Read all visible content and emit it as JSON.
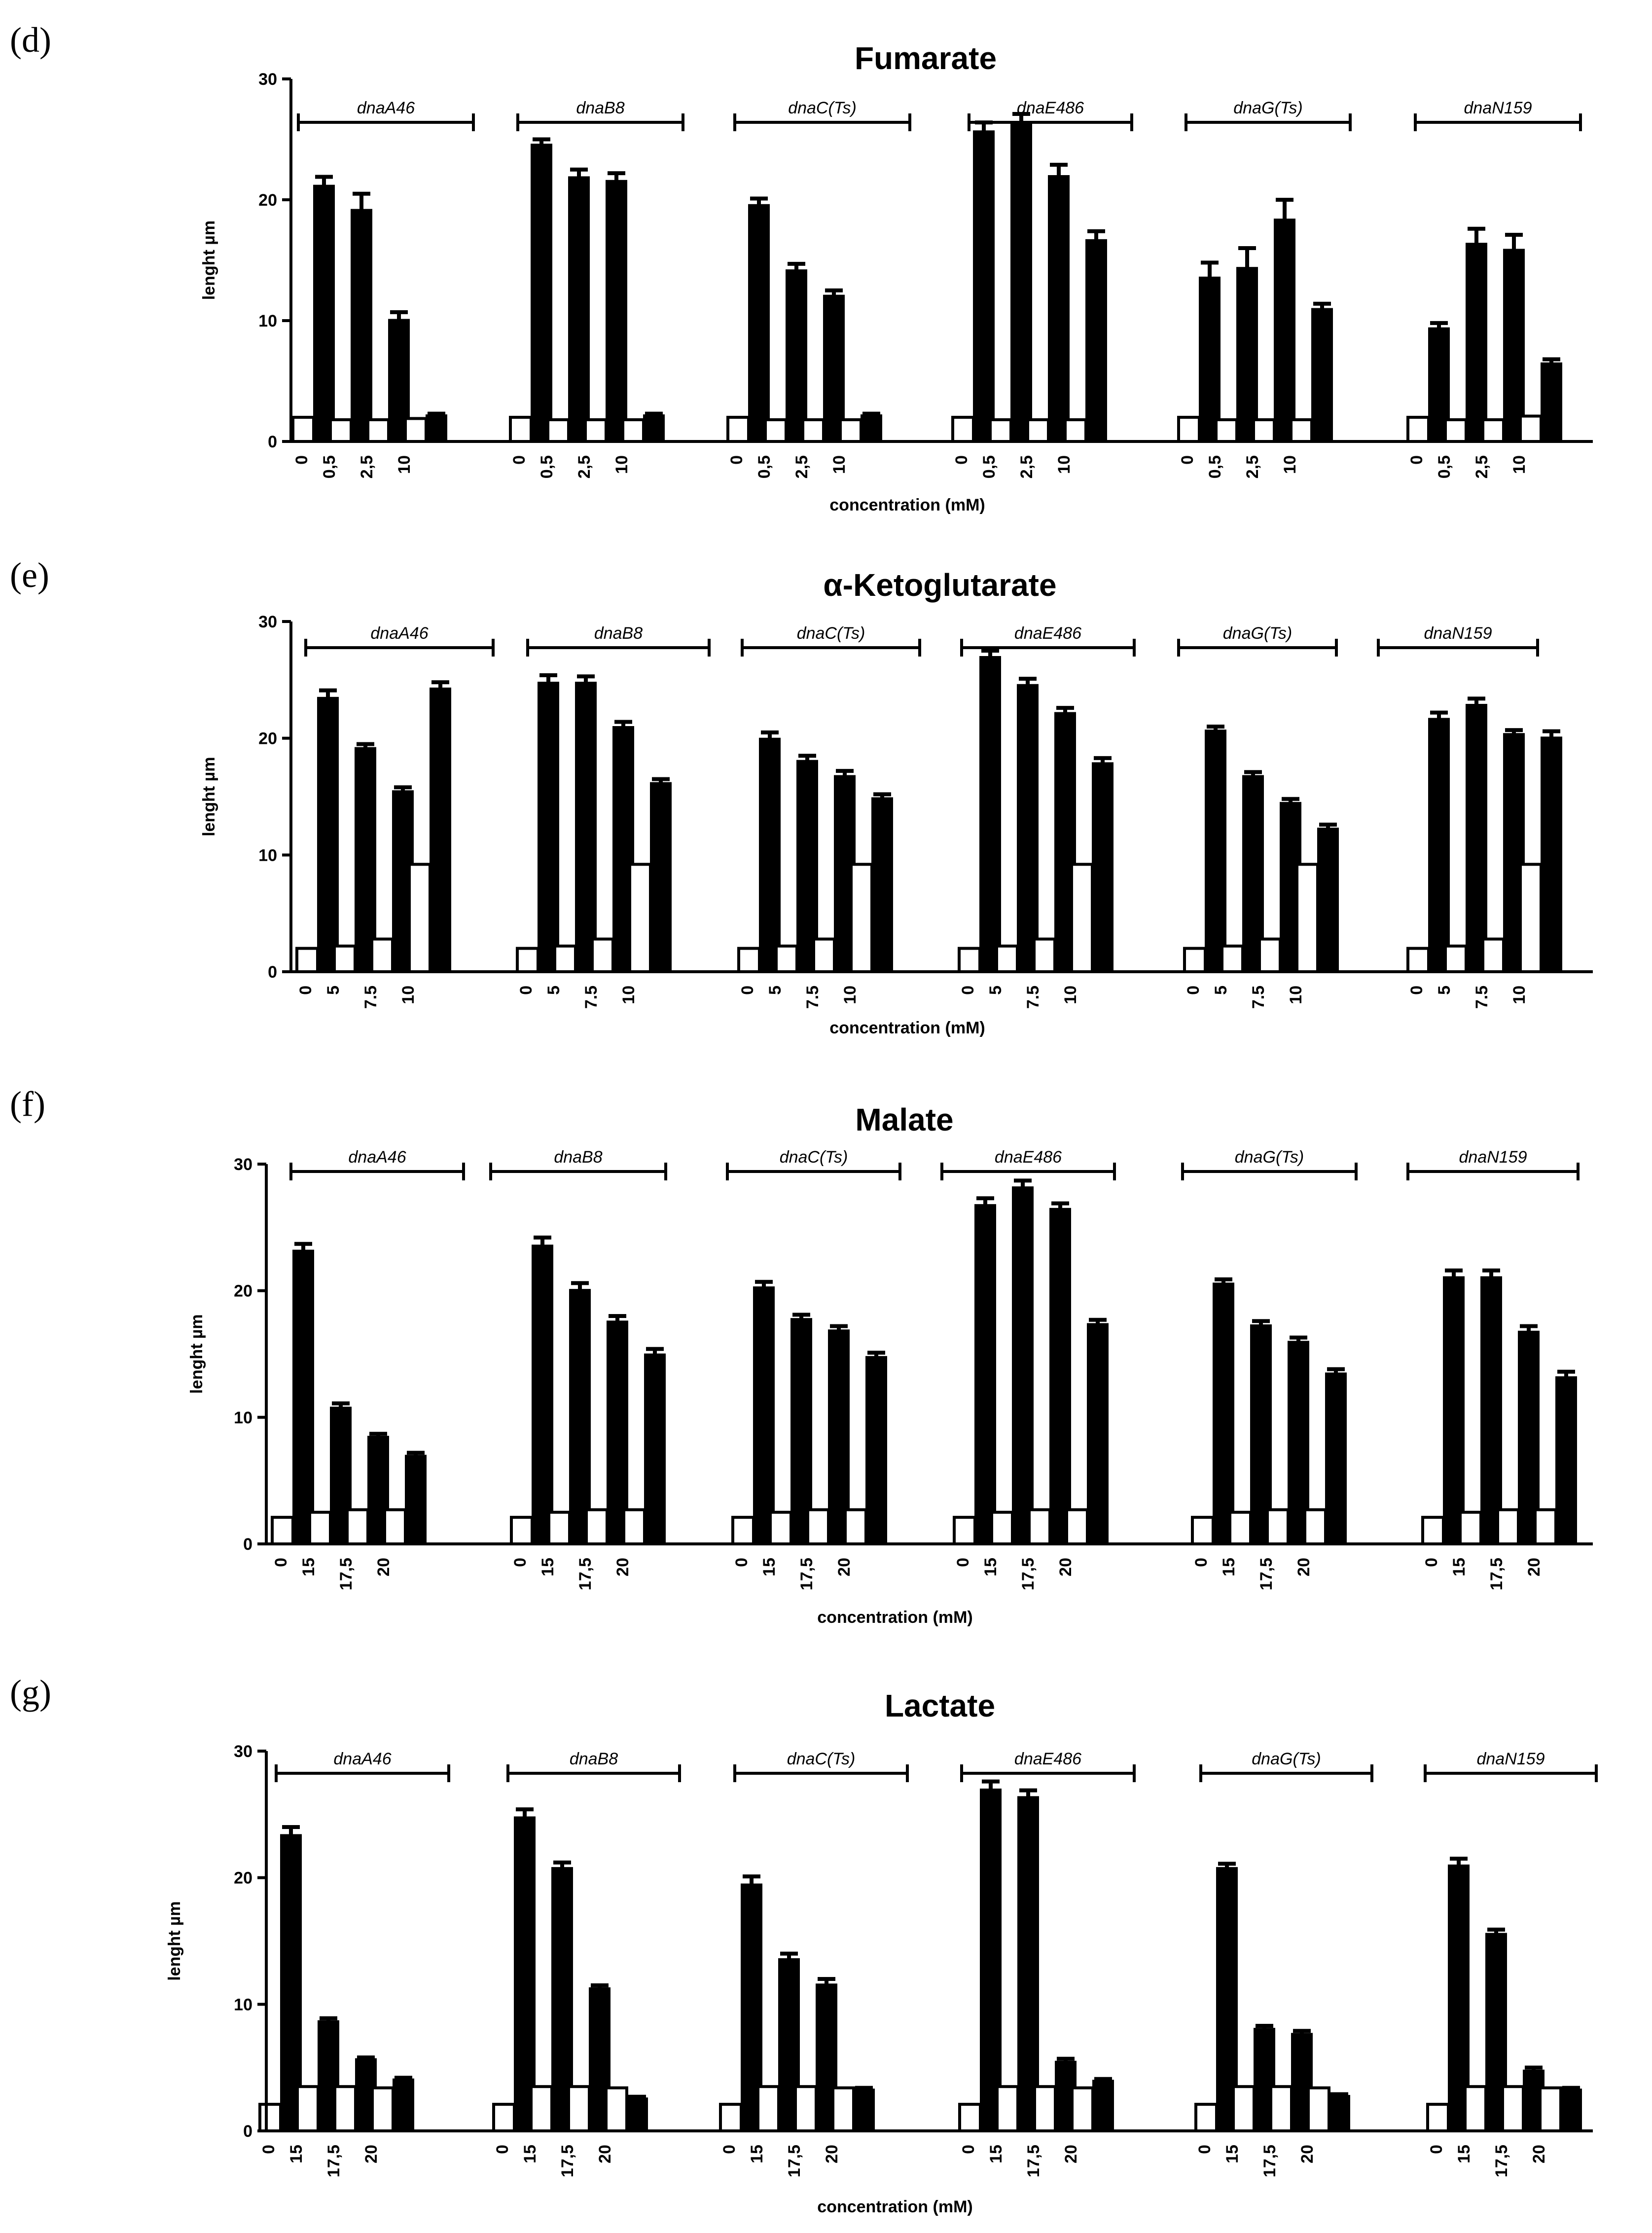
{
  "figure": {
    "panels": [
      {
        "letter": "(d)",
        "title": "Fumarate"
      },
      {
        "letter": "(e)",
        "title": "α-Ketoglutarate"
      },
      {
        "letter": "(f)",
        "title": "Malate"
      },
      {
        "letter": "(g)",
        "title": "Lactate"
      }
    ]
  },
  "colors": {
    "filled": "#000000",
    "open": "#ffffff",
    "axis": "#000000"
  },
  "chart_data": [
    {
      "type": "bar",
      "title": "Fumarate",
      "panel": "(d)",
      "xlabel": "concentration (mM)",
      "ylabel": "lenght µm",
      "ylim": [
        0,
        30
      ],
      "yticks": [
        0,
        10,
        20,
        30
      ],
      "tick_labels": [
        "0",
        "0,5",
        "2,5",
        "10"
      ],
      "groups": [
        "dnaA46",
        "dnaB8",
        "dnaC(Ts)",
        "dnaE486",
        "dnaG(Ts)",
        "dnaN159"
      ],
      "series": [
        {
          "name": "open (control)",
          "values": [
            [
              2.0,
              1.8,
              1.8,
              1.9
            ],
            [
              2.0,
              1.8,
              1.8,
              1.8
            ],
            [
              2.0,
              1.8,
              1.8,
              1.8
            ],
            [
              2.0,
              1.8,
              1.8,
              1.8
            ],
            [
              2.0,
              1.8,
              1.8,
              1.8
            ],
            [
              2.0,
              1.8,
              1.8,
              2.1
            ]
          ]
        },
        {
          "name": "filled (treated)",
          "values": [
            [
              21.2,
              19.2,
              10.1,
              2.2
            ],
            [
              24.6,
              21.9,
              21.6,
              2.2
            ],
            [
              19.6,
              14.2,
              12.1,
              2.2
            ],
            [
              25.7,
              26.3,
              22.0,
              16.7
            ],
            [
              13.6,
              14.4,
              18.4,
              11.0
            ],
            [
              9.4,
              16.4,
              15.9,
              6.5
            ]
          ]
        },
        {
          "name": "filled error",
          "values": [
            [
              0.7,
              1.3,
              0.6,
              0.1
            ],
            [
              0.4,
              0.6,
              0.6,
              0.1
            ],
            [
              0.5,
              0.5,
              0.4,
              0.1
            ],
            [
              0.7,
              0.8,
              0.9,
              0.7
            ],
            [
              1.2,
              1.6,
              1.6,
              0.4
            ],
            [
              0.4,
              1.2,
              1.2,
              0.3
            ]
          ]
        }
      ]
    },
    {
      "type": "bar",
      "title": "α-Ketoglutarate",
      "panel": "(e)",
      "xlabel": "concentration (mM)",
      "ylabel": "lenght µm",
      "ylim": [
        0,
        30
      ],
      "yticks": [
        0,
        10,
        20,
        30
      ],
      "tick_labels": [
        "0",
        "5",
        "7.5",
        "10"
      ],
      "groups": [
        "dnaA46",
        "dnaB8",
        "dnaC(Ts)",
        "dnaE486",
        "dnaG(Ts)",
        "dnaN159"
      ],
      "series": [
        {
          "name": "open (control)",
          "values": [
            [
              2.0,
              2.2,
              2.8,
              9.2
            ],
            [
              2.0,
              2.2,
              2.8,
              9.2
            ],
            [
              2.0,
              2.2,
              2.8,
              9.2
            ],
            [
              2.0,
              2.2,
              2.8,
              9.2
            ],
            [
              2.0,
              2.2,
              2.8,
              9.2
            ],
            [
              2.0,
              2.2,
              2.8,
              9.2
            ]
          ]
        },
        {
          "name": "filled (treated)",
          "values": [
            [
              23.5,
              19.2,
              15.5,
              24.3
            ],
            [
              24.8,
              24.8,
              21.0,
              16.2
            ],
            [
              20.0,
              18.1,
              16.8,
              14.9
            ],
            [
              27.0,
              24.6,
              22.2,
              17.9
            ],
            [
              20.7,
              16.8,
              14.5,
              12.3
            ],
            [
              21.7,
              22.9,
              20.4,
              20.1
            ]
          ]
        },
        {
          "name": "filled error",
          "values": [
            [
              0.6,
              0.3,
              0.3,
              0.5
            ],
            [
              0.6,
              0.5,
              0.4,
              0.3
            ],
            [
              0.5,
              0.4,
              0.4,
              0.3
            ],
            [
              0.5,
              0.5,
              0.4,
              0.4
            ],
            [
              0.3,
              0.3,
              0.3,
              0.3
            ],
            [
              0.5,
              0.5,
              0.3,
              0.5
            ]
          ]
        }
      ]
    },
    {
      "type": "bar",
      "title": "Malate",
      "panel": "(f)",
      "xlabel": "concentration (mM)",
      "ylabel": "lenght µm",
      "ylim": [
        0,
        30
      ],
      "yticks": [
        0,
        10,
        20,
        30
      ],
      "tick_labels": [
        "0",
        "15",
        "17,5",
        "20"
      ],
      "groups": [
        "dnaA46",
        "dnaB8",
        "dnaC(Ts)",
        "dnaE486",
        "dnaG(Ts)",
        "dnaN159"
      ],
      "series": [
        {
          "name": "open (control)",
          "values": [
            [
              2.1,
              2.5,
              2.7,
              2.7
            ],
            [
              2.1,
              2.5,
              2.7,
              2.7
            ],
            [
              2.1,
              2.5,
              2.7,
              2.7
            ],
            [
              2.1,
              2.5,
              2.7,
              2.7
            ],
            [
              2.1,
              2.5,
              2.7,
              2.7
            ],
            [
              2.1,
              2.5,
              2.7,
              2.7
            ]
          ]
        },
        {
          "name": "filled (treated)",
          "values": [
            [
              23.2,
              10.8,
              8.5,
              7.0
            ],
            [
              23.6,
              20.1,
              17.6,
              15.0
            ],
            [
              20.3,
              17.8,
              16.9,
              14.8
            ],
            [
              26.8,
              28.2,
              26.5,
              17.4
            ],
            [
              20.6,
              17.3,
              16.0,
              13.5
            ],
            [
              21.1,
              21.1,
              16.8,
              13.2
            ]
          ]
        },
        {
          "name": "filled error",
          "values": [
            [
              0.5,
              0.3,
              0.2,
              0.2
            ],
            [
              0.6,
              0.5,
              0.4,
              0.4
            ],
            [
              0.4,
              0.3,
              0.3,
              0.3
            ],
            [
              0.5,
              0.5,
              0.4,
              0.3
            ],
            [
              0.3,
              0.3,
              0.3,
              0.3
            ],
            [
              0.5,
              0.5,
              0.4,
              0.4
            ]
          ]
        }
      ]
    },
    {
      "type": "bar",
      "title": "Lactate",
      "panel": "(g)",
      "xlabel": "concentration (mM)",
      "ylabel": "lenght µm",
      "ylim": [
        0,
        30
      ],
      "yticks": [
        0,
        10,
        20,
        30
      ],
      "tick_labels": [
        "0",
        "15",
        "17.5",
        "20"
      ],
      "tick_labels_alt": [
        "0",
        "15",
        "17,5",
        "20"
      ],
      "groups": [
        "dnaA46",
        "dnaB8",
        "dnaC(Ts)",
        "dnaE486",
        "dnaG(Ts)",
        "dnaN159"
      ],
      "series": [
        {
          "name": "open (control)",
          "values": [
            [
              2.1,
              3.5,
              3.5,
              3.4
            ],
            [
              2.1,
              3.5,
              3.5,
              3.4
            ],
            [
              2.1,
              3.5,
              3.5,
              3.4
            ],
            [
              2.1,
              3.5,
              3.5,
              3.4
            ],
            [
              2.1,
              3.5,
              3.5,
              3.4
            ],
            [
              2.1,
              3.5,
              3.5,
              3.4
            ]
          ]
        },
        {
          "name": "filled (treated)",
          "values": [
            [
              23.4,
              8.7,
              5.7,
              4.1
            ],
            [
              24.8,
              20.8,
              11.3,
              2.6
            ],
            [
              19.5,
              13.6,
              11.6,
              3.3
            ],
            [
              27.0,
              26.4,
              5.5,
              4.0
            ],
            [
              20.8,
              8.1,
              7.7,
              2.8
            ],
            [
              21.0,
              15.6,
              4.8,
              3.3
            ]
          ]
        },
        {
          "name": "filled error",
          "values": [
            [
              0.6,
              0.2,
              0.1,
              0.1
            ],
            [
              0.6,
              0.4,
              0.2,
              0.1
            ],
            [
              0.6,
              0.4,
              0.4,
              0.1
            ],
            [
              0.6,
              0.5,
              0.2,
              0.1
            ],
            [
              0.3,
              0.2,
              0.2,
              0.1
            ],
            [
              0.5,
              0.3,
              0.2,
              0.1
            ]
          ]
        }
      ]
    }
  ]
}
